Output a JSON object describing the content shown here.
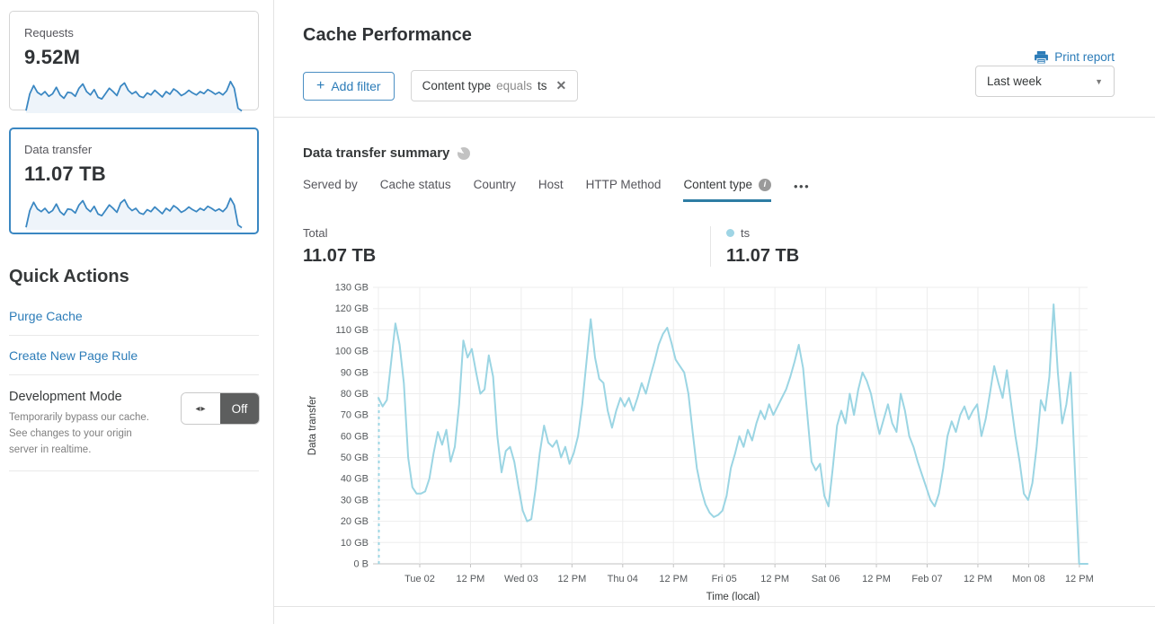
{
  "header": {
    "title": "Cache Performance",
    "print_label": "Print report",
    "time_range": "Last week"
  },
  "filters": {
    "add_label": "Add filter",
    "chip": {
      "field": "Content type",
      "operator": "equals",
      "value": "ts"
    }
  },
  "icons": {
    "plus": "+",
    "close": "✕",
    "caret": "▼",
    "ellipsis": "•••",
    "info": "i",
    "toggle_arrows": "◂▸"
  },
  "sidebar": {
    "cards": [
      {
        "label": "Requests",
        "value": "9.52M",
        "selected": false
      },
      {
        "label": "Data transfer",
        "value": "11.07 TB",
        "selected": true
      }
    ],
    "sparkline": [
      5,
      55,
      80,
      60,
      52,
      62,
      48,
      55,
      75,
      52,
      42,
      60,
      58,
      48,
      72,
      85,
      62,
      52,
      68,
      45,
      40,
      56,
      72,
      62,
      50,
      78,
      88,
      66,
      55,
      62,
      48,
      44,
      58,
      52,
      66,
      56,
      46,
      62,
      54,
      70,
      62,
      50,
      56,
      66,
      58,
      52,
      62,
      56,
      68,
      62,
      54,
      60,
      52,
      64,
      92,
      72,
      12,
      4
    ],
    "quick_actions": {
      "title": "Quick Actions",
      "purge_cache": "Purge Cache",
      "create_page_rule": "Create New Page Rule",
      "development_mode": {
        "title": "Development Mode",
        "description": "Temporarily bypass our cache. See changes to your origin server in realtime.",
        "state": "Off"
      }
    }
  },
  "summary": {
    "title": "Data transfer summary",
    "tabs": [
      {
        "label": "Served by"
      },
      {
        "label": "Cache status"
      },
      {
        "label": "Country"
      },
      {
        "label": "Host"
      },
      {
        "label": "HTTP Method"
      },
      {
        "label": "Content type",
        "active": true,
        "info": true
      }
    ],
    "total": {
      "label": "Total",
      "value": "11.07 TB"
    },
    "legend": {
      "label": "ts",
      "value": "11.07 TB"
    }
  },
  "chart_data": {
    "type": "line",
    "title": "Data transfer summary",
    "xlabel": "Time (local)",
    "ylabel": "Data transfer",
    "unit": "GB",
    "ylim": [
      0,
      130
    ],
    "grid": true,
    "leading_dashed_segment": true,
    "yticks": [
      "0 B",
      "10 GB",
      "20 GB",
      "30 GB",
      "40 GB",
      "50 GB",
      "60 GB",
      "70 GB",
      "80 GB",
      "90 GB",
      "100 GB",
      "110 GB",
      "120 GB",
      "130 GB"
    ],
    "xticks": [
      "Tue 02",
      "12 PM",
      "Wed 03",
      "12 PM",
      "Thu 04",
      "12 PM",
      "Fri 05",
      "12 PM",
      "Sat 06",
      "12 PM",
      "Feb 07",
      "12 PM",
      "Mon 08",
      "12 PM"
    ],
    "series": [
      {
        "name": "ts",
        "color": "#9bd5e3",
        "values": [
          78,
          74,
          77,
          95,
          113,
          103,
          85,
          50,
          36,
          33,
          33,
          34,
          40,
          52,
          62,
          56,
          63,
          48,
          55,
          75,
          105,
          97,
          101,
          90,
          80,
          82,
          98,
          88,
          60,
          43,
          53,
          55,
          48,
          36,
          25,
          20,
          21,
          35,
          52,
          65,
          57,
          55,
          58,
          50,
          55,
          47,
          52,
          60,
          75,
          95,
          115,
          97,
          87,
          85,
          72,
          64,
          72,
          78,
          74,
          78,
          72,
          78,
          85,
          80,
          88,
          95,
          103,
          108,
          111,
          104,
          96,
          93,
          90,
          80,
          62,
          45,
          35,
          28,
          24,
          22,
          23,
          25,
          32,
          45,
          52,
          60,
          55,
          63,
          58,
          66,
          72,
          68,
          75,
          70,
          74,
          78,
          82,
          88,
          95,
          103,
          92,
          70,
          48,
          44,
          47,
          32,
          27,
          45,
          65,
          72,
          66,
          80,
          70,
          82,
          90,
          86,
          80,
          70,
          61,
          68,
          75,
          66,
          62,
          80,
          72,
          60,
          55,
          48,
          42,
          36,
          30,
          27,
          33,
          45,
          60,
          67,
          62,
          70,
          74,
          68,
          72,
          75,
          60,
          68,
          80,
          93,
          85,
          78,
          91,
          75,
          60,
          48,
          33,
          30,
          38,
          55,
          77,
          72,
          88,
          122,
          90,
          66,
          75,
          90,
          45,
          0,
          0,
          0
        ]
      }
    ]
  },
  "colors": {
    "link": "#2c7cb8",
    "selected_card_border": "#3a87c2",
    "chart_line": "#9bd5e3",
    "legend_dot": "#9fd5e5",
    "spark_line": "#3a87c2",
    "spark_fill": "#eef4fa",
    "tab_underline": "#2e7da4",
    "toggle_off_bg": "#5d5e5e",
    "gridline": "#ededed",
    "axis_line": "#c2c2c2"
  }
}
